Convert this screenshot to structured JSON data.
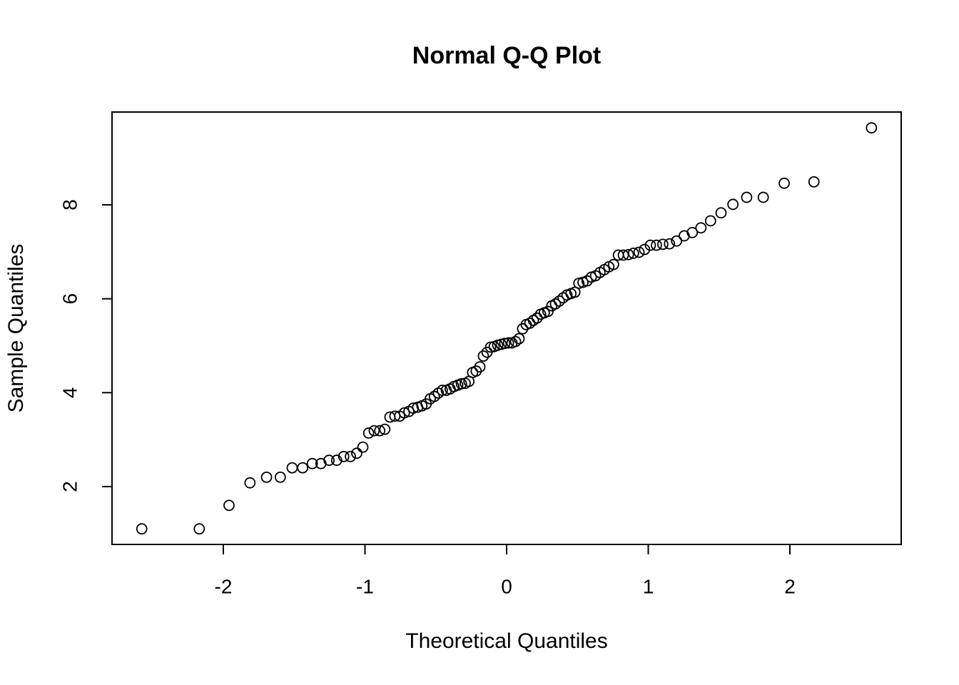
{
  "chart_data": {
    "type": "scatter",
    "title": "Normal Q-Q Plot",
    "xlabel": "Theoretical Quantiles",
    "ylabel": "Sample Quantiles",
    "x": [
      -2.576,
      -2.17,
      -1.96,
      -1.812,
      -1.695,
      -1.598,
      -1.514,
      -1.44,
      -1.372,
      -1.311,
      -1.254,
      -1.2,
      -1.15,
      -1.103,
      -1.058,
      -1.015,
      -0.974,
      -0.935,
      -0.896,
      -0.86,
      -0.824,
      -0.789,
      -0.755,
      -0.722,
      -0.69,
      -0.659,
      -0.628,
      -0.598,
      -0.568,
      -0.539,
      -0.51,
      -0.482,
      -0.454,
      -0.426,
      -0.399,
      -0.372,
      -0.345,
      -0.319,
      -0.292,
      -0.266,
      -0.24,
      -0.215,
      -0.189,
      -0.164,
      -0.138,
      -0.113,
      -0.088,
      -0.063,
      -0.038,
      -0.013,
      0.013,
      0.038,
      0.063,
      0.088,
      0.113,
      0.138,
      0.164,
      0.189,
      0.215,
      0.24,
      0.266,
      0.292,
      0.319,
      0.345,
      0.372,
      0.399,
      0.426,
      0.454,
      0.482,
      0.51,
      0.539,
      0.568,
      0.598,
      0.628,
      0.659,
      0.69,
      0.722,
      0.755,
      0.789,
      0.824,
      0.86,
      0.896,
      0.935,
      0.974,
      1.015,
      1.058,
      1.103,
      1.15,
      1.2,
      1.254,
      1.311,
      1.372,
      1.44,
      1.514,
      1.598,
      1.695,
      1.812,
      1.96,
      2.17,
      2.576
    ],
    "values": [
      1.1,
      1.1,
      1.6,
      2.08,
      2.2,
      2.2,
      2.4,
      2.4,
      2.49,
      2.49,
      2.56,
      2.56,
      2.64,
      2.64,
      2.71,
      2.84,
      3.14,
      3.19,
      3.19,
      3.22,
      3.48,
      3.5,
      3.5,
      3.57,
      3.6,
      3.67,
      3.69,
      3.72,
      3.76,
      3.87,
      3.92,
      3.99,
      4.05,
      4.05,
      4.08,
      4.13,
      4.16,
      4.19,
      4.2,
      4.24,
      4.43,
      4.46,
      4.55,
      4.78,
      4.86,
      4.97,
      4.98,
      5.01,
      5.03,
      5.05,
      5.06,
      5.06,
      5.09,
      5.15,
      5.36,
      5.45,
      5.48,
      5.54,
      5.59,
      5.67,
      5.7,
      5.73,
      5.85,
      5.89,
      5.95,
      6.02,
      6.08,
      6.11,
      6.14,
      6.33,
      6.35,
      6.38,
      6.46,
      6.49,
      6.56,
      6.62,
      6.68,
      6.73,
      6.93,
      6.93,
      6.94,
      6.97,
      6.99,
      7.05,
      7.14,
      7.14,
      7.16,
      7.17,
      7.23,
      7.34,
      7.41,
      7.51,
      7.66,
      7.83,
      8.01,
      8.16,
      8.16,
      8.46,
      8.49,
      9.64
    ],
    "color": "#000000",
    "xlim": [
      -2.786,
      2.786
    ],
    "ylim": [
      0.768,
      9.977
    ],
    "xticks": [
      -2,
      -1,
      0,
      1,
      2
    ],
    "yticks": [
      2,
      4,
      6,
      8
    ]
  }
}
